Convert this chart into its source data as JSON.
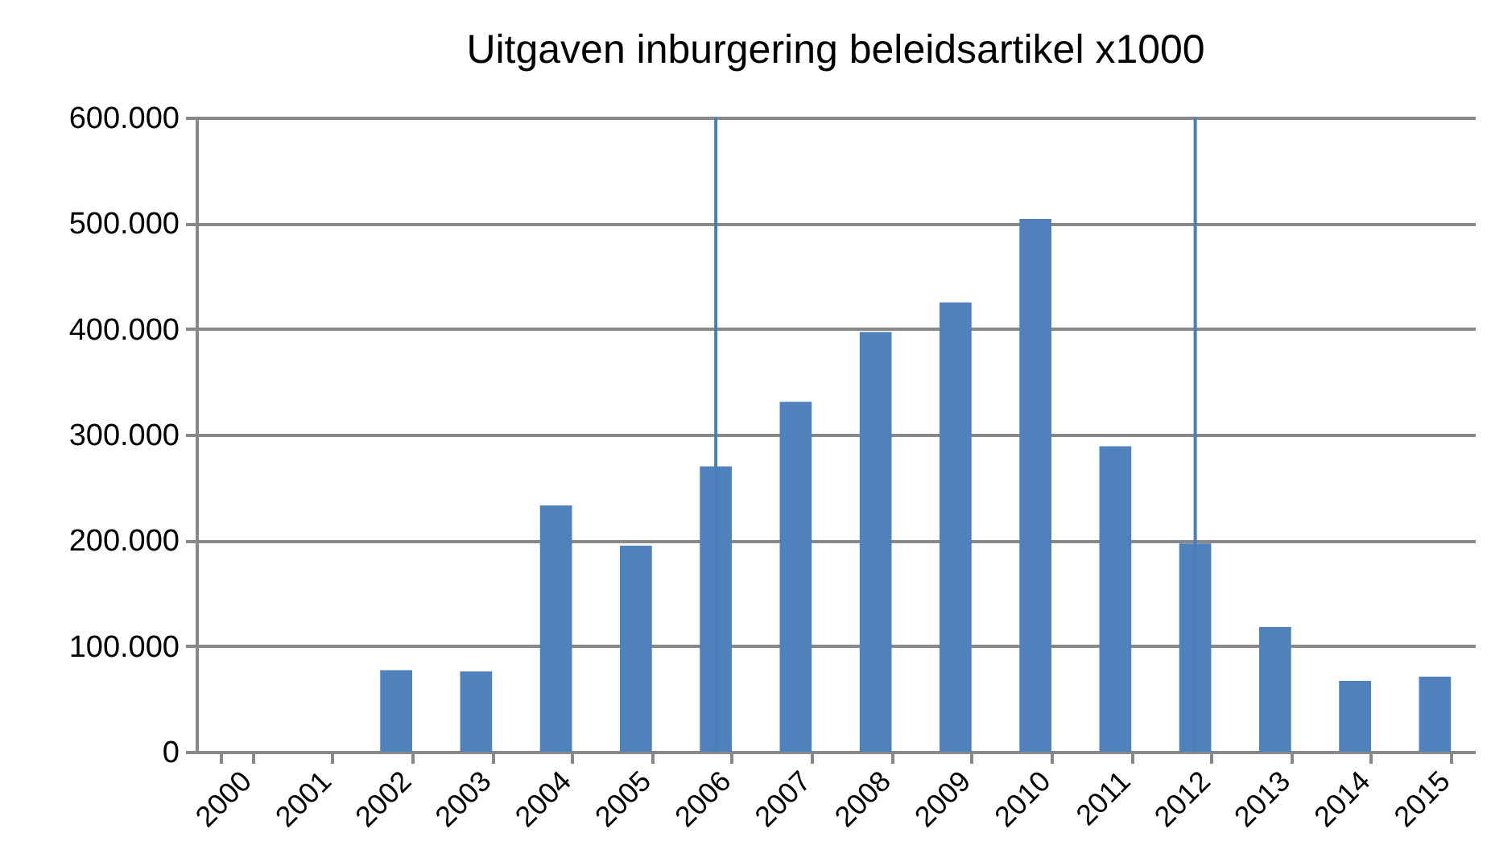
{
  "chart_data": {
    "type": "bar",
    "title": "Uitgaven inburgering beleidsartikel x1000",
    "categories": [
      "2000",
      "2001",
      "2002",
      "2003",
      "2004",
      "2005",
      "2006",
      "2007",
      "2008",
      "2009",
      "2010",
      "2011",
      "2012",
      "2013",
      "2014",
      "2015"
    ],
    "values": [
      0,
      0,
      77000,
      76000,
      233000,
      195000,
      270000,
      331000,
      397000,
      425000,
      504000,
      289000,
      197000,
      118000,
      67000,
      71000
    ],
    "color": "#4f81bd",
    "ylim": [
      0,
      600000
    ],
    "yticks": [
      {
        "value": 0,
        "label": "0"
      },
      {
        "value": 100000,
        "label": "100.000"
      },
      {
        "value": 200000,
        "label": "200.000"
      },
      {
        "value": 300000,
        "label": "300.000"
      },
      {
        "value": 400000,
        "label": "400.000"
      },
      {
        "value": 500000,
        "label": "500.000"
      },
      {
        "value": 600000,
        "label": "600.000"
      }
    ],
    "grid": "y",
    "ref_lines": [
      {
        "axis": "x",
        "value": "2006",
        "color": "#4a7ebb"
      },
      {
        "axis": "x",
        "value": "2012",
        "color": "#4a7ebb"
      }
    ]
  }
}
